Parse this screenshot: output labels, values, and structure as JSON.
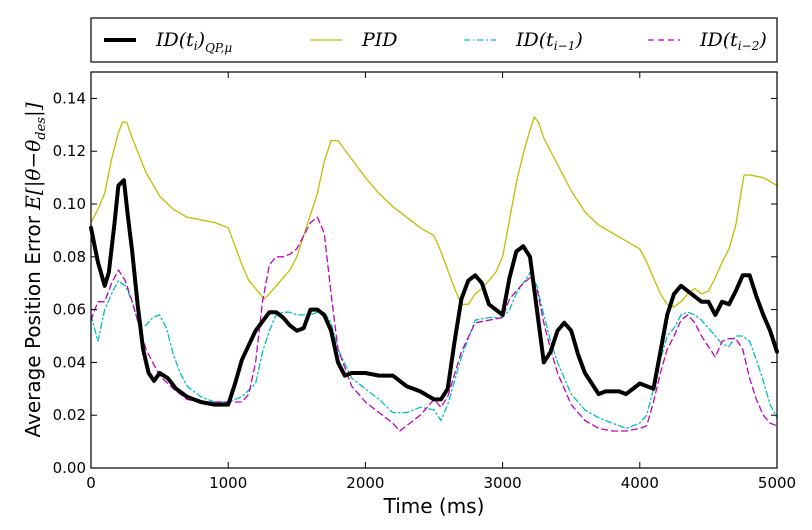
{
  "chart_data": {
    "type": "line",
    "xlabel": "Time (ms)",
    "ylabel_prefix": "Average Position Error ",
    "ylabel_math": "E[|θ−θ",
    "ylabel_math_sub": "des",
    "ylabel_math_close": "|]",
    "xlim": [
      0,
      5000
    ],
    "ylim": [
      0,
      0.15
    ],
    "xticks": [
      0,
      1000,
      2000,
      3000,
      4000,
      5000
    ],
    "xtick_labels": [
      "0",
      "1000",
      "2000",
      "3000",
      "4000",
      "5000"
    ],
    "yticks": [
      0.0,
      0.02,
      0.04,
      0.06,
      0.08,
      0.1,
      0.12,
      0.14
    ],
    "ytick_labels": [
      "0.00",
      "0.02",
      "0.04",
      "0.06",
      "0.08",
      "0.10",
      "0.12",
      "0.14"
    ],
    "legend_position": "top, above plot",
    "series": [
      {
        "name": "ID(t_i)_{QP,μ}",
        "legend_main": "ID(t",
        "legend_sub1": "i",
        "legend_close": ")",
        "legend_sub2": "QP,μ",
        "color": "#000000",
        "style": "solid-thick",
        "x": [
          0,
          50,
          100,
          130,
          170,
          200,
          240,
          270,
          300,
          340,
          380,
          420,
          460,
          500,
          560,
          620,
          700,
          800,
          900,
          1000,
          1050,
          1100,
          1200,
          1300,
          1350,
          1400,
          1450,
          1500,
          1550,
          1600,
          1650,
          1700,
          1750,
          1800,
          1850,
          1900,
          2000,
          2100,
          2200,
          2300,
          2400,
          2500,
          2550,
          2600,
          2650,
          2700,
          2750,
          2800,
          2850,
          2900,
          2950,
          3000,
          3050,
          3100,
          3150,
          3200,
          3250,
          3300,
          3350,
          3400,
          3450,
          3500,
          3550,
          3600,
          3650,
          3700,
          3750,
          3800,
          3850,
          3900,
          4000,
          4100,
          4150,
          4200,
          4250,
          4300,
          4350,
          4400,
          4450,
          4500,
          4550,
          4600,
          4650,
          4700,
          4750,
          4800,
          4850,
          4900,
          4950,
          5000
        ],
        "values": [
          0.091,
          0.078,
          0.069,
          0.074,
          0.092,
          0.107,
          0.109,
          0.095,
          0.082,
          0.062,
          0.045,
          0.036,
          0.033,
          0.036,
          0.034,
          0.03,
          0.027,
          0.025,
          0.024,
          0.024,
          0.032,
          0.041,
          0.052,
          0.059,
          0.059,
          0.057,
          0.054,
          0.052,
          0.053,
          0.06,
          0.06,
          0.058,
          0.052,
          0.04,
          0.035,
          0.036,
          0.036,
          0.035,
          0.035,
          0.031,
          0.029,
          0.026,
          0.026,
          0.03,
          0.048,
          0.064,
          0.071,
          0.073,
          0.07,
          0.062,
          0.06,
          0.058,
          0.072,
          0.082,
          0.084,
          0.08,
          0.06,
          0.04,
          0.044,
          0.052,
          0.055,
          0.052,
          0.043,
          0.036,
          0.032,
          0.028,
          0.029,
          0.029,
          0.029,
          0.028,
          0.032,
          0.03,
          0.044,
          0.058,
          0.066,
          0.069,
          0.067,
          0.065,
          0.063,
          0.063,
          0.058,
          0.063,
          0.062,
          0.067,
          0.073,
          0.073,
          0.065,
          0.058,
          0.052,
          0.044
        ]
      },
      {
        "name": "PID",
        "legend_main": "PID",
        "color": "#bfbf00",
        "style": "solid-thin",
        "x": [
          0,
          50,
          100,
          150,
          200,
          230,
          260,
          300,
          400,
          500,
          600,
          700,
          800,
          900,
          1000,
          1050,
          1100,
          1150,
          1200,
          1260,
          1300,
          1350,
          1400,
          1450,
          1500,
          1550,
          1600,
          1650,
          1700,
          1750,
          1800,
          1900,
          2000,
          2100,
          2200,
          2300,
          2400,
          2500,
          2550,
          2600,
          2650,
          2700,
          2750,
          2800,
          2850,
          2900,
          2950,
          3000,
          3050,
          3100,
          3150,
          3200,
          3230,
          3260,
          3300,
          3400,
          3500,
          3600,
          3700,
          3800,
          3900,
          4000,
          4050,
          4100,
          4150,
          4200,
          4250,
          4300,
          4350,
          4400,
          4450,
          4500,
          4550,
          4600,
          4650,
          4700,
          4730,
          4760,
          4800,
          4900,
          5000
        ],
        "values": [
          0.093,
          0.098,
          0.104,
          0.117,
          0.127,
          0.131,
          0.131,
          0.125,
          0.112,
          0.103,
          0.098,
          0.095,
          0.094,
          0.093,
          0.091,
          0.084,
          0.077,
          0.071,
          0.068,
          0.064,
          0.066,
          0.069,
          0.072,
          0.075,
          0.08,
          0.088,
          0.096,
          0.104,
          0.116,
          0.124,
          0.124,
          0.117,
          0.11,
          0.104,
          0.099,
          0.095,
          0.091,
          0.088,
          0.082,
          0.075,
          0.068,
          0.062,
          0.062,
          0.066,
          0.068,
          0.071,
          0.074,
          0.08,
          0.094,
          0.108,
          0.119,
          0.128,
          0.133,
          0.131,
          0.125,
          0.115,
          0.105,
          0.097,
          0.092,
          0.089,
          0.086,
          0.083,
          0.078,
          0.072,
          0.066,
          0.062,
          0.061,
          0.063,
          0.066,
          0.068,
          0.066,
          0.067,
          0.072,
          0.078,
          0.083,
          0.092,
          0.102,
          0.111,
          0.111,
          0.11,
          0.107
        ]
      },
      {
        "name": "ID(t_{i-1})",
        "legend_main": "ID(t",
        "legend_sub1": "i−1",
        "legend_close": ")",
        "color": "#00bfbf",
        "style": "dashdot",
        "x": [
          0,
          50,
          100,
          150,
          200,
          250,
          300,
          350,
          400,
          450,
          500,
          550,
          600,
          650,
          700,
          800,
          900,
          1000,
          1100,
          1200,
          1250,
          1300,
          1350,
          1400,
          1450,
          1500,
          1550,
          1600,
          1650,
          1700,
          1750,
          1800,
          1900,
          2000,
          2100,
          2200,
          2300,
          2400,
          2500,
          2550,
          2600,
          2700,
          2800,
          2900,
          3000,
          3050,
          3100,
          3150,
          3200,
          3250,
          3300,
          3350,
          3400,
          3500,
          3600,
          3700,
          3800,
          3900,
          4000,
          4050,
          4100,
          4150,
          4200,
          4250,
          4300,
          4350,
          4400,
          4450,
          4500,
          4550,
          4600,
          4650,
          4700,
          4750,
          4800,
          4850,
          4900,
          4950,
          5000
        ],
        "values": [
          0.058,
          0.048,
          0.06,
          0.066,
          0.071,
          0.069,
          0.063,
          0.054,
          0.054,
          0.057,
          0.058,
          0.053,
          0.043,
          0.036,
          0.031,
          0.027,
          0.025,
          0.025,
          0.027,
          0.032,
          0.044,
          0.052,
          0.058,
          0.059,
          0.059,
          0.058,
          0.058,
          0.058,
          0.059,
          0.059,
          0.055,
          0.045,
          0.034,
          0.03,
          0.026,
          0.021,
          0.021,
          0.023,
          0.022,
          0.018,
          0.024,
          0.042,
          0.056,
          0.057,
          0.057,
          0.06,
          0.066,
          0.07,
          0.074,
          0.069,
          0.058,
          0.048,
          0.04,
          0.028,
          0.022,
          0.019,
          0.017,
          0.015,
          0.017,
          0.02,
          0.03,
          0.041,
          0.05,
          0.053,
          0.058,
          0.059,
          0.058,
          0.056,
          0.053,
          0.05,
          0.047,
          0.046,
          0.05,
          0.05,
          0.048,
          0.041,
          0.033,
          0.024,
          0.019
        ]
      },
      {
        "name": "ID(t_{i-2})",
        "legend_main": "ID(t",
        "legend_sub1": "i−2",
        "legend_close": ")",
        "color": "#bf00bf",
        "style": "dashed",
        "x": [
          0,
          50,
          100,
          150,
          200,
          250,
          300,
          350,
          400,
          450,
          500,
          600,
          700,
          800,
          900,
          1000,
          1100,
          1150,
          1200,
          1250,
          1300,
          1350,
          1400,
          1450,
          1500,
          1550,
          1600,
          1650,
          1700,
          1750,
          1800,
          1900,
          2000,
          2100,
          2200,
          2250,
          2300,
          2400,
          2500,
          2550,
          2600,
          2700,
          2800,
          2900,
          3000,
          3050,
          3100,
          3150,
          3200,
          3250,
          3300,
          3350,
          3400,
          3500,
          3600,
          3700,
          3800,
          3900,
          4000,
          4050,
          4100,
          4150,
          4200,
          4250,
          4300,
          4350,
          4400,
          4450,
          4500,
          4550,
          4600,
          4650,
          4700,
          4750,
          4800,
          4850,
          4900,
          4950,
          5000
        ],
        "values": [
          0.056,
          0.063,
          0.063,
          0.07,
          0.075,
          0.071,
          0.063,
          0.054,
          0.045,
          0.04,
          0.035,
          0.03,
          0.026,
          0.025,
          0.025,
          0.025,
          0.025,
          0.028,
          0.04,
          0.063,
          0.077,
          0.08,
          0.08,
          0.081,
          0.083,
          0.088,
          0.093,
          0.095,
          0.089,
          0.066,
          0.045,
          0.031,
          0.025,
          0.021,
          0.017,
          0.014,
          0.016,
          0.02,
          0.026,
          0.023,
          0.027,
          0.044,
          0.055,
          0.056,
          0.057,
          0.064,
          0.067,
          0.07,
          0.072,
          0.068,
          0.055,
          0.045,
          0.036,
          0.024,
          0.018,
          0.015,
          0.014,
          0.014,
          0.015,
          0.016,
          0.025,
          0.036,
          0.045,
          0.05,
          0.056,
          0.058,
          0.055,
          0.05,
          0.046,
          0.042,
          0.048,
          0.049,
          0.049,
          0.045,
          0.034,
          0.026,
          0.02,
          0.017,
          0.016
        ]
      }
    ]
  }
}
